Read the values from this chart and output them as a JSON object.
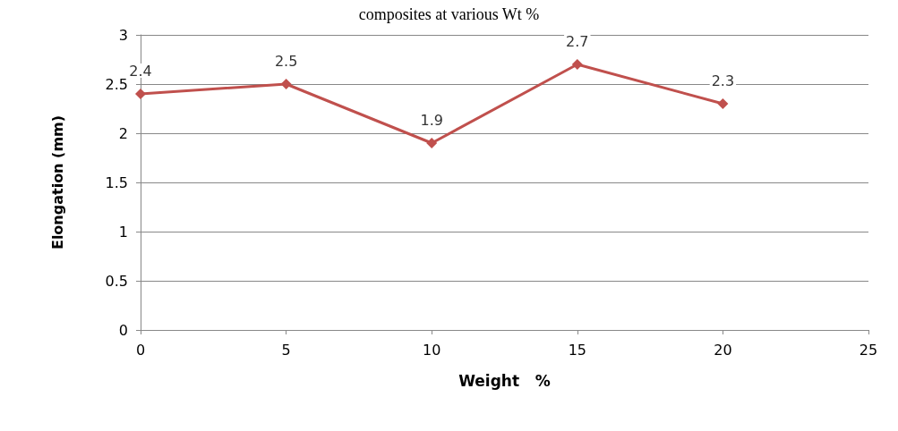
{
  "chart_data": {
    "type": "line",
    "title": "composites at various Wt %",
    "xlabel": "Weight   %",
    "ylabel": "Elongation (mm)",
    "x": [
      0,
      5,
      10,
      15,
      20
    ],
    "series": [
      {
        "color": "#c0504d",
        "values": [
          2.4,
          2.5,
          1.9,
          2.7,
          2.3
        ]
      }
    ],
    "xlim": [
      0,
      25
    ],
    "xticks": [
      0,
      5,
      10,
      15,
      20,
      25
    ],
    "ylim": [
      0,
      3
    ],
    "yticks": [
      0,
      0.5,
      1,
      1.5,
      2,
      2.5,
      3
    ],
    "grid": "y",
    "marker": "diamond",
    "line_style": "solid",
    "data_labels": true
  }
}
